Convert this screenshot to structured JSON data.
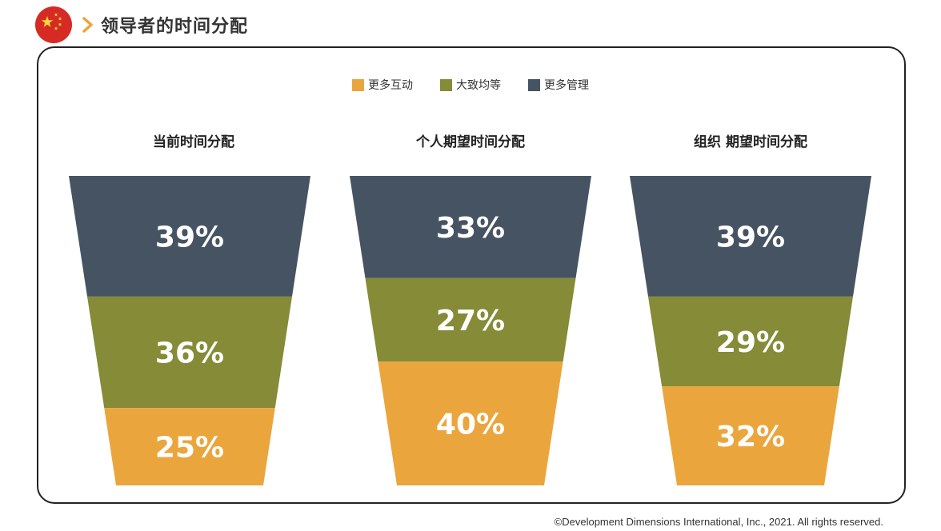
{
  "header": {
    "title": "领导者的时间分配",
    "flag_icon": "china-flag-icon"
  },
  "colors": {
    "interaction": "#eaa63d",
    "balanced": "#858b36",
    "management": "#465362",
    "chevron": "#f0a33a"
  },
  "chart_data": {
    "type": "bar",
    "subtype": "stacked-funnel",
    "series": [
      {
        "name": "更多互动",
        "color": "#eaa63d"
      },
      {
        "name": "大致均等",
        "color": "#858b36"
      },
      {
        "name": "更多管理",
        "color": "#465362"
      }
    ],
    "charts": [
      {
        "title": "当前时间分配",
        "values": {
          "更多管理": 39,
          "大致均等": 36,
          "更多互动": 25
        },
        "labels": [
          "39%",
          "36%",
          "25%"
        ]
      },
      {
        "title": "个人期望时间分配",
        "values": {
          "更多管理": 33,
          "大致均等": 27,
          "更多互动": 40
        },
        "labels": [
          "33%",
          "27%",
          "40%"
        ]
      },
      {
        "title": "组织 期望时间分配",
        "values": {
          "更多管理": 39,
          "大致均等": 29,
          "更多互动": 32
        },
        "labels": [
          "39%",
          "29%",
          "32%"
        ]
      }
    ],
    "legend_position": "top-center"
  },
  "footer": {
    "copyright": "©Development Dimensions International, Inc., 2021. All rights reserved."
  }
}
